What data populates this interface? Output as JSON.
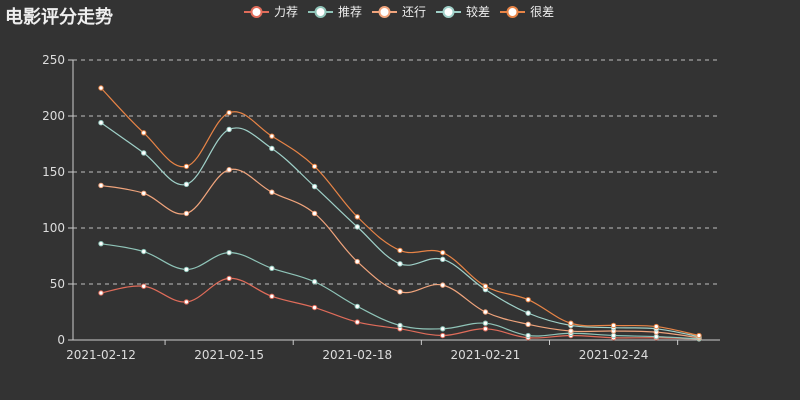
{
  "chart_data": {
    "type": "line",
    "title": "电影评分走势",
    "x": [
      "2021-02-12",
      "2021-02-13",
      "2021-02-14",
      "2021-02-15",
      "2021-02-16",
      "2021-02-17",
      "2021-02-18",
      "2021-02-19",
      "2021-02-20",
      "2021-02-21",
      "2021-02-22",
      "2021-02-23",
      "2021-02-24",
      "2021-02-25",
      "2021-02-26"
    ],
    "x_tick_labels": [
      "2021-02-12",
      "2021-02-15",
      "2021-02-18",
      "2021-02-21",
      "2021-02-24"
    ],
    "ylim": [
      0,
      250
    ],
    "y_ticks": [
      "0",
      "50",
      "100",
      "150",
      "200",
      "250"
    ],
    "grid": "horizontal dashed",
    "legend_position": "top",
    "smooth": true,
    "series": [
      {
        "name": "力荐",
        "color": "#e06c5a",
        "values": [
          42,
          48,
          34,
          55,
          39,
          29,
          16,
          10,
          4,
          10,
          2,
          4,
          2,
          2,
          1
        ]
      },
      {
        "name": "推荐",
        "color": "#8fc4b8",
        "values": [
          86,
          79,
          63,
          78,
          64,
          52,
          30,
          13,
          10,
          15,
          4,
          6,
          4,
          3,
          1
        ]
      },
      {
        "name": "还行",
        "color": "#f0a47c",
        "values": [
          138,
          131,
          113,
          152,
          132,
          113,
          70,
          43,
          49,
          25,
          14,
          8,
          8,
          7,
          2
        ]
      },
      {
        "name": "较差",
        "color": "#9fd0c8",
        "values": [
          194,
          167,
          139,
          188,
          171,
          137,
          101,
          68,
          72,
          45,
          24,
          13,
          11,
          10,
          3
        ]
      },
      {
        "name": "很差",
        "color": "#e88446",
        "values": [
          225,
          185,
          155,
          203,
          182,
          155,
          110,
          80,
          78,
          48,
          36,
          15,
          13,
          12,
          4
        ]
      }
    ]
  }
}
